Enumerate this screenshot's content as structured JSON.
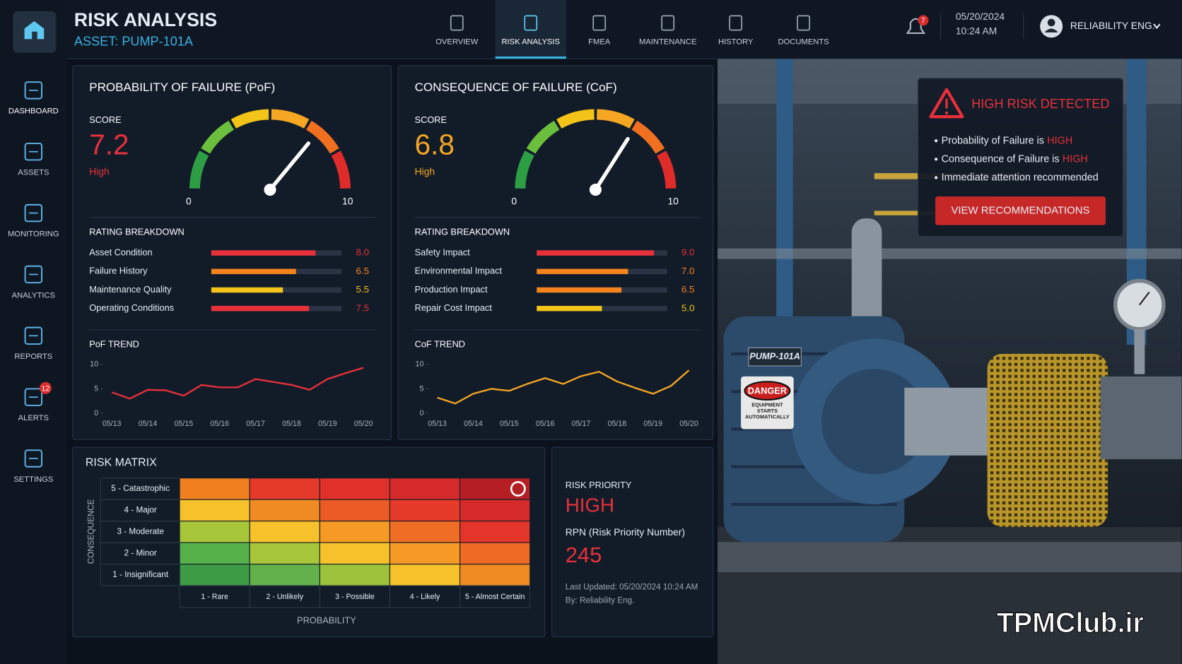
{
  "header": {
    "title": "RISK ANALYSIS",
    "asset": "ASSET: PUMP-101A",
    "date": "05/20/2024",
    "time": "10:24 AM",
    "user": "RELIABILITY ENG.",
    "notifications": 7
  },
  "nav": {
    "items": [
      "OVERVIEW",
      "RISK ANALYSIS",
      "FMEA",
      "MAINTENANCE",
      "HISTORY",
      "DOCUMENTS"
    ],
    "active": 1
  },
  "sidebar": {
    "items": [
      "DASHBOARD",
      "ASSETS",
      "MONITORING",
      "ANALYTICS",
      "REPORTS",
      "ALERTS",
      "SETTINGS"
    ],
    "active": 0,
    "alerts_badge": 12
  },
  "panels": [
    {
      "title": "PROBABILITY OF FAILURE (PoF)",
      "score_label": "SCORE",
      "score": 7.2,
      "rating": "High",
      "color": "#e8303a",
      "gauge": {
        "min": 0,
        "max": 10
      },
      "breakdown_title": "RATING BREAKDOWN",
      "breakdown": {
        "names": [
          "Asset Condition",
          "Failure History",
          "Maintenance Quality",
          "Operating Conditions"
        ],
        "values": [
          8.0,
          6.5,
          5.5,
          7.5
        ],
        "value_labels": [
          "8.0",
          "6.5",
          "5.5",
          "7.5"
        ],
        "colors": [
          "#e8303a",
          "#f5841f",
          "#f2c417",
          "#e8303a"
        ]
      },
      "trend": {
        "title": "PoF TREND",
        "categories": [
          "05/13",
          null,
          "05/14",
          null,
          "05/15",
          null,
          "05/16",
          null,
          "05/17",
          null,
          "05/18",
          null,
          "05/19",
          null,
          "05/20"
        ],
        "values": [
          4.3,
          3.0,
          4.8,
          4.7,
          3.6,
          5.8,
          5.3,
          5.3,
          7.0,
          6.4,
          5.8,
          4.8,
          7.0,
          8.2,
          9.3
        ],
        "ylim": [
          0,
          10
        ],
        "yticks": [
          0,
          5,
          10
        ],
        "color": "#e8303a"
      }
    },
    {
      "title": "CONSEQUENCE OF FAILURE (CoF)",
      "score_label": "SCORE",
      "score": 6.8,
      "rating": "High",
      "color": "#f5a623",
      "gauge": {
        "min": 0,
        "max": 10
      },
      "breakdown_title": "RATING BREAKDOWN",
      "breakdown": {
        "names": [
          "Safety Impact",
          "Environmental Impact",
          "Production Impact",
          "Repair Cost Impact"
        ],
        "values": [
          9.0,
          7.0,
          6.5,
          5.0
        ],
        "value_labels": [
          "9.0",
          "7.0",
          "6.5",
          "5.0"
        ],
        "colors": [
          "#e8303a",
          "#f5841f",
          "#f5841f",
          "#f2c417"
        ]
      },
      "trend": {
        "title": "CoF TREND",
        "categories": [
          "05/13",
          null,
          "05/14",
          null,
          "05/15",
          null,
          "05/16",
          null,
          "05/17",
          null,
          "05/18",
          null,
          "05/19",
          null,
          "05/20"
        ],
        "values": [
          3.2,
          2.0,
          4.0,
          5.0,
          4.6,
          6.0,
          7.2,
          6.0,
          7.6,
          8.5,
          6.5,
          5.2,
          4.0,
          5.6,
          8.8
        ],
        "ylim": [
          0,
          10
        ],
        "yticks": [
          0,
          5,
          10
        ],
        "color": "#f5a623"
      }
    }
  ],
  "risk_matrix": {
    "title": "RISK MATRIX",
    "consequence_label": "CONSEQUENCE",
    "probability_label": "PROBABILITY",
    "rows": [
      "5 - Catastrophic",
      "4 - Major",
      "3 - Moderate",
      "2 - Minor",
      "1 - Insignificant"
    ],
    "columns": [
      "1 - Rare",
      "2 - Unlikely",
      "3 - Possible",
      "4 - Likely",
      "5 - Almost Certain"
    ],
    "colors": [
      [
        "#f07f1f",
        "#e53a2a",
        "#e0302a",
        "#d42a2a",
        "#b51f24"
      ],
      [
        "#f6c12a",
        "#f08a22",
        "#ec5b26",
        "#e63a2a",
        "#d42a2a"
      ],
      [
        "#a8c63a",
        "#f6c12a",
        "#f59a24",
        "#ef6d25",
        "#e3352a"
      ],
      [
        "#55b04a",
        "#a8c63a",
        "#f6c12a",
        "#f59a24",
        "#ee6a25"
      ],
      [
        "#3d9b45",
        "#62b14a",
        "#9cc33b",
        "#f6c12a",
        "#f08a22"
      ]
    ],
    "selected": {
      "row": 0,
      "column": 4
    }
  },
  "priority": {
    "label": "RISK PRIORITY",
    "level": "HIGH",
    "rpn_label": "RPN (Risk Priority Number)",
    "rpn": 245,
    "updated": "Last Updated: 05/20/2024 10:24 AM",
    "by": "By: Reliability Eng."
  },
  "alert": {
    "title": "HIGH RISK DETECTED",
    "items": [
      {
        "text": "Probability of Failure is",
        "highlight": "HIGH"
      },
      {
        "text": "Consequence of Failure is",
        "highlight": "HIGH"
      },
      {
        "text": "Immediate attention recommended"
      }
    ],
    "button": "VIEW RECOMMENDATIONS"
  },
  "photo": {
    "plate": "PUMP-101A",
    "sign": "DANGER",
    "sign_note": "EQUIPMENT STARTS AUTOMATICALLY"
  },
  "watermark": "TPMClub.ir"
}
